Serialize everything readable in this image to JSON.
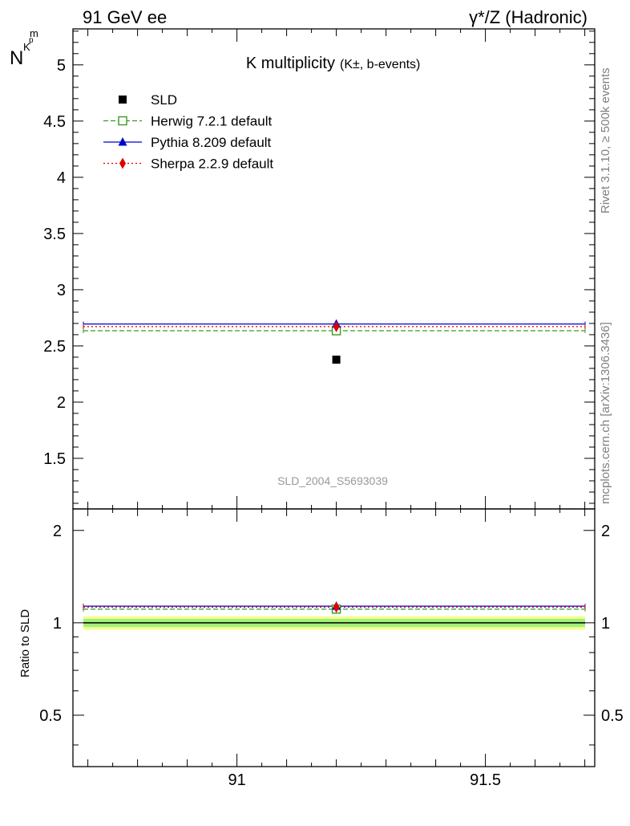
{
  "header": {
    "left": "91 GeV ee",
    "right": "γ*/Z (Hadronic)"
  },
  "side_labels": {
    "rivet": "Rivet 3.1.10, ≥ 500k events",
    "mcplots": "mcplots.cern.ch [arXiv:1306.3436]"
  },
  "chart_data": [
    {
      "type": "scatter",
      "title": "K multiplicity",
      "title_sub": "(K±, b-events)",
      "ylabel_main": "N",
      "ylabel_sub": "K",
      "ylabel_sup": "p",
      "ylabel_sub2": "m",
      "watermark": "SLD_2004_S5693039",
      "xlim": [
        90.67,
        91.72
      ],
      "ylim": [
        1.05,
        5.32
      ],
      "yticks": [
        1.5,
        2,
        2.5,
        3,
        3.5,
        4,
        4.5,
        5
      ],
      "ytick_labels": [
        "1.5",
        "2",
        "2.5",
        "3",
        "3.5",
        "4",
        "4.5",
        "5"
      ],
      "legend_position": "top-left",
      "data": {
        "name": "SLD",
        "x": 91.2,
        "y": 2.378,
        "color": "#000000"
      },
      "series": [
        {
          "name": "Herwig 7.2.1 default",
          "value": 2.635,
          "x": 91.2,
          "color": "#3a9a1e",
          "style": "dashed",
          "marker": "open-square"
        },
        {
          "name": "Pythia 8.209 default",
          "value": 2.695,
          "x": 91.2,
          "color": "#0000cc",
          "style": "solid",
          "marker": "triangle"
        },
        {
          "name": "Sherpa 2.2.9 default",
          "value": 2.672,
          "x": 91.2,
          "color": "#dd0000",
          "style": "dotted",
          "marker": "diamond"
        }
      ]
    },
    {
      "type": "line",
      "ylabel": "Ratio to SLD",
      "xlim": [
        90.67,
        91.72
      ],
      "ylim": [
        0.34,
        2.35
      ],
      "xticks": [
        91,
        91.5
      ],
      "xtick_labels": [
        "91",
        "91.5"
      ],
      "yticks": [
        0.5,
        1,
        2
      ],
      "ytick_labels": [
        "0.5",
        "1",
        "2"
      ],
      "band_inner": [
        0.97,
        1.03
      ],
      "band_outer": [
        0.95,
        1.05
      ],
      "band_inner_color": "#9ef07a",
      "band_outer_color": "#f4ff8a",
      "series": [
        {
          "name": "Herwig 7.2.1 default",
          "value": 1.108,
          "color": "#3a9a1e",
          "style": "dashed",
          "marker": "open-square"
        },
        {
          "name": "Pythia 8.209 default",
          "value": 1.133,
          "color": "#0000cc",
          "style": "solid",
          "marker": "triangle"
        },
        {
          "name": "Sherpa 2.2.9 default",
          "value": 1.124,
          "color": "#dd0000",
          "style": "dotted",
          "marker": "diamond"
        }
      ]
    }
  ]
}
